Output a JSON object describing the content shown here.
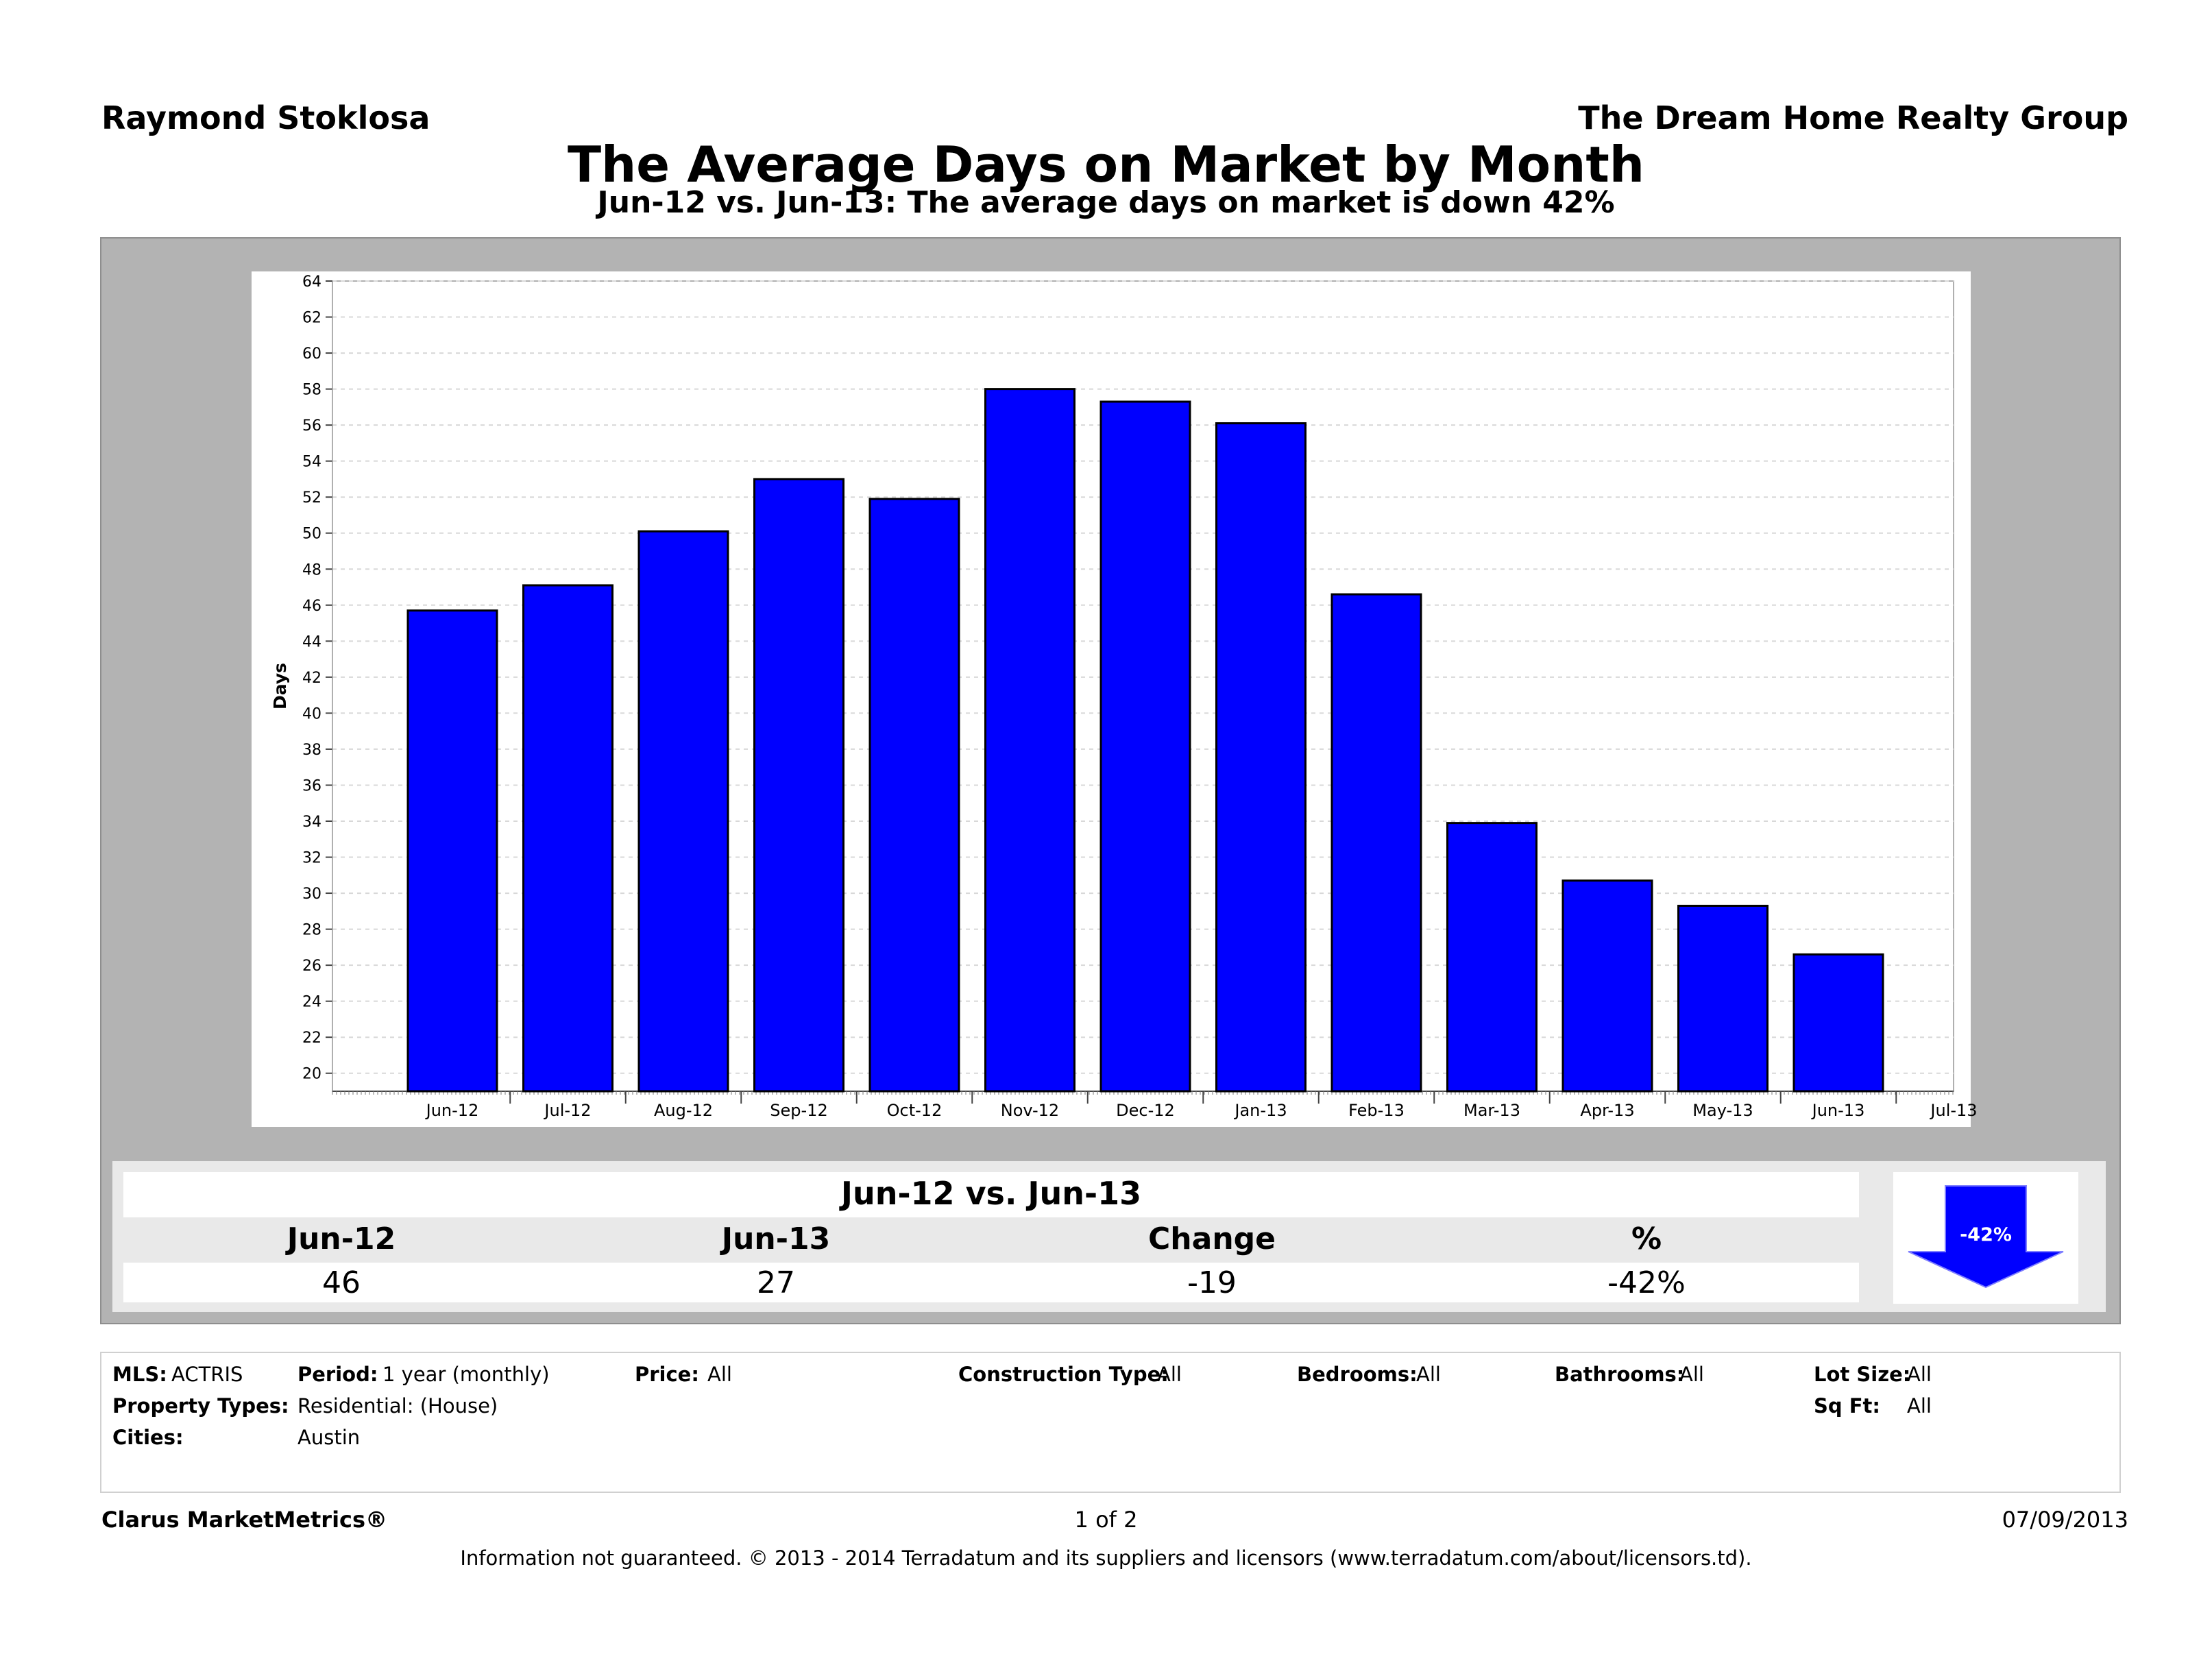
{
  "header": {
    "agent": "Raymond Stoklosa",
    "company": "The Dream Home Realty Group",
    "title": "The Average Days on Market by Month",
    "subtitle": "Jun-12 vs. Jun-13:  The average days on market is down 42%"
  },
  "chart_data": {
    "type": "bar",
    "ylabel": "Days",
    "ylim": [
      19,
      64
    ],
    "yticks": [
      20,
      22,
      24,
      26,
      28,
      30,
      32,
      34,
      36,
      38,
      40,
      42,
      44,
      46,
      48,
      50,
      52,
      54,
      56,
      58,
      60,
      62,
      64
    ],
    "grid": true,
    "categories": [
      "Jun-12",
      "Jul-12",
      "Aug-12",
      "Sep-12",
      "Oct-12",
      "Nov-12",
      "Dec-12",
      "Jan-13",
      "Feb-13",
      "Mar-13",
      "Apr-13",
      "May-13",
      "Jun-13",
      "Jul-13"
    ],
    "values": [
      45.7,
      47.1,
      50.1,
      53.0,
      51.9,
      58.0,
      57.3,
      56.1,
      46.6,
      33.9,
      30.7,
      29.3,
      26.6,
      null
    ],
    "bar_color": "#0000ff"
  },
  "summary": {
    "heading": "Jun-12 vs. Jun-13",
    "columns": [
      {
        "label": "Jun-12",
        "value": "46"
      },
      {
        "label": "Jun-13",
        "value": "27"
      },
      {
        "label": "Change",
        "value": "-19"
      },
      {
        "label": "%",
        "value": "-42%"
      }
    ],
    "arrow_label": "-42%",
    "arrow_color": "#0000ff"
  },
  "info": {
    "mls_label": "MLS:",
    "mls": "ACTRIS",
    "period_label": "Period:",
    "period": "1 year (monthly)",
    "price_label": "Price:",
    "price": "All",
    "construction_label": "Construction Type:",
    "construction": "All",
    "bedrooms_label": "Bedrooms:",
    "bedrooms": "All",
    "bathrooms_label": "Bathrooms:",
    "bathrooms": "All",
    "lotsize_label": "Lot Size:",
    "lotsize": "All",
    "proptypes_label": "Property Types:",
    "proptypes": "Residential: (House)",
    "sqft_label": "Sq Ft:",
    "sqft": "All",
    "cities_label": "Cities:",
    "cities": "Austin"
  },
  "footer": {
    "brand": "Clarus MarketMetrics®",
    "page": "1 of 2",
    "date": "07/09/2013",
    "disclaimer": "Information not guaranteed.  © 2013 - 2014 Terradatum and its suppliers and licensors (www.terradatum.com/about/licensors.td)."
  }
}
